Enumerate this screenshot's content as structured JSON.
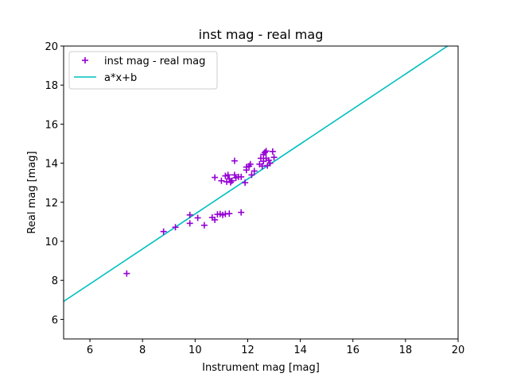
{
  "chart_data": {
    "type": "scatter",
    "title": "inst mag - real mag",
    "xlabel": "Instrument mag [mag]",
    "ylabel": "Real mag [mag]",
    "xlim": [
      5,
      20
    ],
    "ylim": [
      5,
      20
    ],
    "xticks": [
      6,
      8,
      10,
      12,
      14,
      16,
      18,
      20
    ],
    "yticks": [
      6,
      8,
      10,
      12,
      14,
      16,
      18,
      20
    ],
    "grid": false,
    "legend_position": "top-left",
    "series": [
      {
        "name": "inst mag - real mag",
        "kind": "scatter",
        "marker": "plus",
        "color": "#9400D3",
        "points": [
          [
            7.4,
            8.35
          ],
          [
            8.8,
            10.5
          ],
          [
            9.25,
            10.72
          ],
          [
            9.8,
            11.35
          ],
          [
            9.8,
            10.92
          ],
          [
            10.1,
            11.2
          ],
          [
            10.35,
            10.82
          ],
          [
            10.65,
            11.22
          ],
          [
            10.75,
            11.1
          ],
          [
            10.85,
            11.38
          ],
          [
            10.95,
            11.4
          ],
          [
            11.05,
            11.35
          ],
          [
            11.15,
            11.4
          ],
          [
            11.3,
            11.42
          ],
          [
            11.75,
            11.48
          ],
          [
            10.75,
            13.27
          ],
          [
            11.0,
            13.1
          ],
          [
            11.15,
            13.35
          ],
          [
            11.2,
            13.05
          ],
          [
            11.25,
            13.4
          ],
          [
            11.3,
            13.2
          ],
          [
            11.35,
            13.02
          ],
          [
            11.4,
            13.1
          ],
          [
            11.5,
            13.4
          ],
          [
            11.55,
            13.25
          ],
          [
            11.65,
            13.3
          ],
          [
            11.75,
            13.3
          ],
          [
            11.5,
            14.12
          ],
          [
            11.9,
            13.0
          ],
          [
            11.95,
            13.65
          ],
          [
            11.95,
            13.8
          ],
          [
            12.05,
            13.85
          ],
          [
            12.1,
            13.95
          ],
          [
            12.15,
            13.4
          ],
          [
            12.25,
            13.6
          ],
          [
            12.45,
            13.95
          ],
          [
            12.5,
            14.25
          ],
          [
            12.55,
            13.85
          ],
          [
            12.6,
            14.1
          ],
          [
            12.6,
            14.45
          ],
          [
            12.65,
            14.55
          ],
          [
            12.7,
            14.62
          ],
          [
            12.7,
            14.25
          ],
          [
            12.75,
            13.88
          ],
          [
            12.8,
            14.15
          ],
          [
            12.85,
            14.0
          ],
          [
            12.95,
            14.6
          ],
          [
            13.0,
            14.3
          ]
        ]
      },
      {
        "name": "a*x+b",
        "kind": "line",
        "color": "#00BFBF",
        "points": [
          [
            5.0,
            6.92
          ],
          [
            19.6,
            20.0
          ]
        ]
      }
    ]
  }
}
